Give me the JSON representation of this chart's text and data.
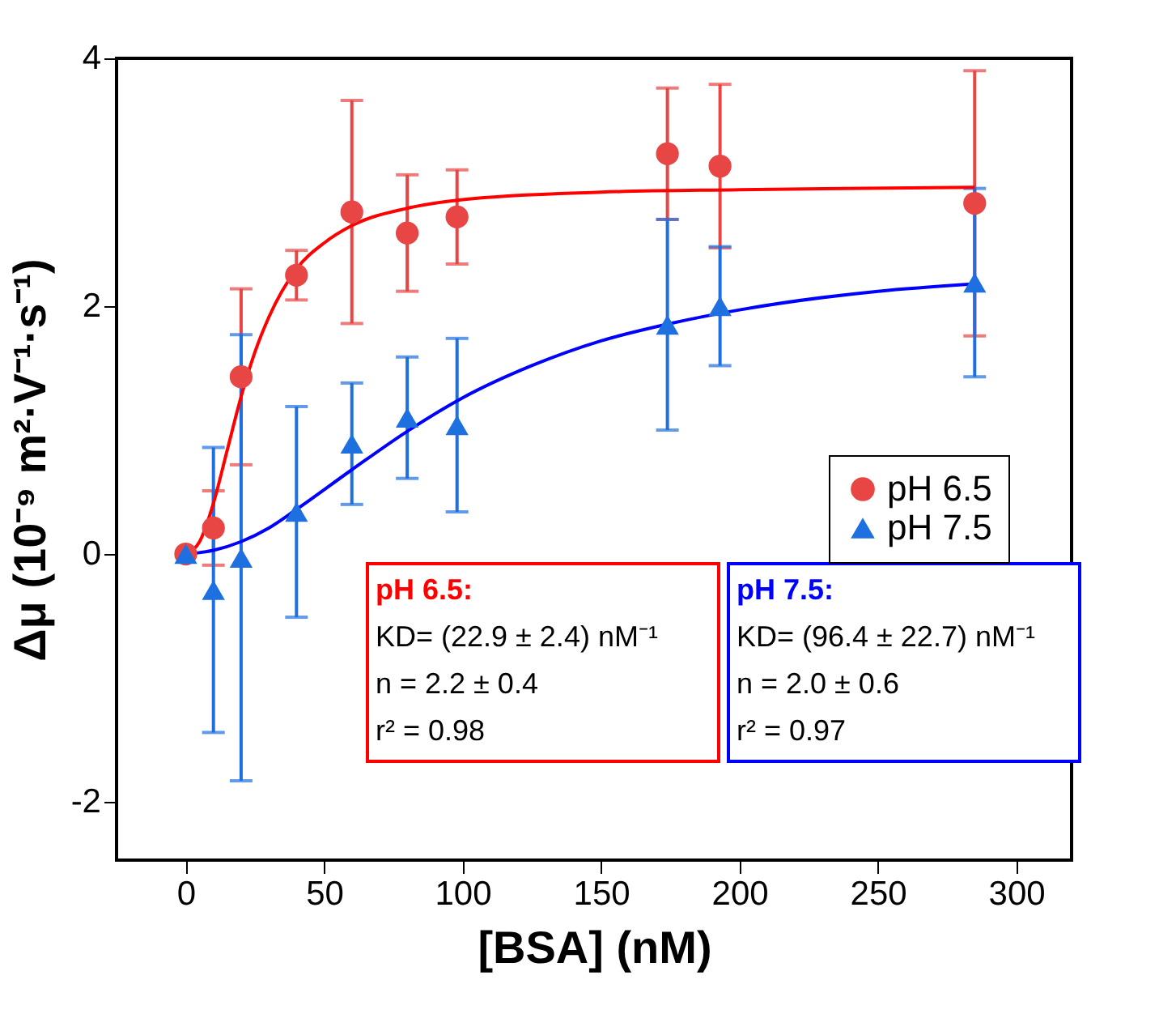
{
  "chart_data": {
    "type": "scatter",
    "xlabel": "[BSA] (nM)",
    "ylabel": "Δμ (10⁻⁹ m²·V⁻¹·s⁻¹)",
    "xlim": [
      -25,
      320
    ],
    "xticks": [
      0,
      50,
      100,
      150,
      200,
      250,
      300
    ],
    "ylim": [
      -2.47,
      4
    ],
    "yticks": [
      -2,
      0,
      2,
      4
    ],
    "grid": false,
    "legend": "right",
    "series": [
      {
        "name": "pH 6.5",
        "marker": "circle",
        "color": "#e84545",
        "x": [
          0,
          10,
          20,
          40,
          60,
          80,
          98,
          174,
          193,
          285
        ],
        "values": [
          0,
          0.21,
          1.43,
          2.25,
          2.76,
          2.59,
          2.72,
          3.23,
          3.13,
          2.83
        ],
        "errors": [
          null,
          0.3,
          0.71,
          0.2,
          0.9,
          0.47,
          0.38,
          0.53,
          0.66,
          1.07
        ]
      },
      {
        "name": "pH 7.5",
        "marker": "triangle",
        "color": "#1e6fe0",
        "x": [
          0,
          10,
          20,
          40,
          60,
          80,
          98,
          174,
          193,
          285
        ],
        "values": [
          0,
          -0.29,
          -0.03,
          0.34,
          0.89,
          1.1,
          1.04,
          1.85,
          2.0,
          2.19
        ],
        "errors": [
          null,
          1.15,
          1.8,
          0.85,
          0.49,
          0.49,
          0.7,
          0.85,
          0.48,
          0.76
        ]
      },
      {
        "type": "line",
        "line_style": "solid",
        "color": "#ff0000",
        "x": [
          0,
          5,
          10,
          15,
          20,
          25,
          30,
          40,
          50,
          60,
          80,
          100,
          150,
          200,
          285
        ],
        "values": [
          0,
          0.1,
          0.41,
          0.84,
          1.27,
          1.63,
          1.91,
          2.3,
          2.51,
          2.65,
          2.79,
          2.86,
          2.92,
          2.94,
          2.96
        ]
      },
      {
        "type": "line",
        "line_style": "solid",
        "color": "#0000ff",
        "x": [
          0,
          10,
          20,
          30,
          40,
          60,
          80,
          100,
          125,
          150,
          175,
          200,
          250,
          285
        ],
        "values": [
          0,
          0.03,
          0.1,
          0.21,
          0.36,
          0.68,
          0.99,
          1.26,
          1.52,
          1.72,
          1.86,
          1.97,
          2.12,
          2.18
        ]
      }
    ],
    "annotations": [
      "pH 6.5:",
      "KD= (22.9 ± 2.4) nM⁻¹",
      "n = 2.2 ± 0.4",
      "r² = 0.98",
      "pH 7.5:",
      "KD= (96.4 ± 22.7) nM⁻¹",
      "n = 2.0 ± 0.6",
      "r² = 0.97"
    ]
  }
}
